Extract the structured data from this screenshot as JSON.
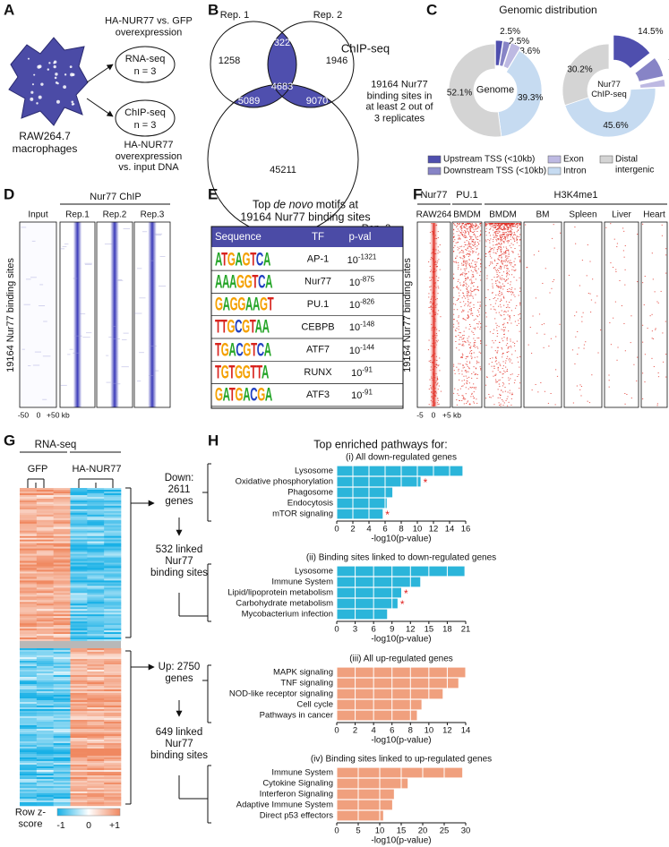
{
  "panels": {
    "letters": [
      "A",
      "B",
      "C",
      "D",
      "E",
      "F",
      "G",
      "H"
    ],
    "A": {
      "comparison": "HA-NUR77 vs. GFP overexpression",
      "rna": {
        "title": "RNA-seq",
        "n": "n = 3"
      },
      "chip": {
        "title": "ChIP-seq",
        "n": "n = 3"
      },
      "chip_comparison": "HA-NUR77 overexpression vs. input DNA",
      "cell": "RAW264.7 macrophages"
    },
    "B": {
      "sets": [
        "Rep. 1",
        "Rep. 2",
        "Rep. 3"
      ],
      "counts": {
        "1": 1258,
        "1+2": 322,
        "2": 1946,
        "1+2+3": 4683,
        "1+3": 5089,
        "2+3": 9070,
        "3": 45211
      },
      "label": "ChIP-seq",
      "note": "19164 Nur77 binding sites in at least 2 out of 3 replicates"
    },
    "D": {
      "title": "Nur77 ChIP",
      "tracks": [
        "Input",
        "Rep.1",
        "Rep.2",
        "Rep.3"
      ],
      "ylabel": "19164 Nur77 binding sites",
      "xticks": [
        "-50",
        "0",
        "+50 kb"
      ]
    },
    "E": {
      "title": {
        "start": "Top",
        "em": "de novo",
        "end": "motifs at",
        "line2": "19164 Nur77 binding sites"
      },
      "columns": [
        "Sequence",
        "TF",
        "p-val"
      ],
      "rows": [
        {
          "logo": "ATGAGTCA",
          "tf": "AP-1",
          "p": {
            "base": "10",
            "exp": "-1321"
          }
        },
        {
          "logo": "AAAGGTCA",
          "tf": "Nur77",
          "p": {
            "base": "10",
            "exp": "-875"
          }
        },
        {
          "logo": "GAGGAAGT",
          "tf": "PU.1",
          "p": {
            "base": "10",
            "exp": "-826"
          }
        },
        {
          "logo": "TTGCGTAA",
          "tf": "CEBPB",
          "p": {
            "base": "10",
            "exp": "-148"
          }
        },
        {
          "logo": "TGACGTCA",
          "tf": "ATF7",
          "p": {
            "base": "10",
            "exp": "-144"
          }
        },
        {
          "logo": "TGTGGTTA",
          "tf": "RUNX",
          "p": {
            "base": "10",
            "exp": "-91"
          }
        },
        {
          "logo": "GATGACGA",
          "tf": "ATF3",
          "p": {
            "base": "10",
            "exp": "-91"
          }
        }
      ]
    },
    "F": {
      "groups": [
        {
          "name": "Nur77",
          "tracks": [
            "RAW264"
          ]
        },
        {
          "name": "PU.1",
          "tracks": [
            "BMDM"
          ]
        },
        {
          "name": "H3K4me1",
          "tracks": [
            "BMDM",
            "BM",
            "Spleen",
            "Liver",
            "Heart"
          ]
        }
      ],
      "ylabel": "19164 Nur77 binding sites",
      "xticks": [
        "-5",
        "0",
        "+5 kb"
      ]
    },
    "G": {
      "title": "RNA-seq",
      "groups": [
        "GFP",
        "HA-NUR77"
      ],
      "legend_title": "Row z-score",
      "legend_ticks": [
        "-1",
        "0",
        "+1"
      ],
      "down": {
        "genes": "Down: 2611 genes",
        "linked": "532 linked Nur77 binding sites"
      },
      "up": {
        "genes": "Up: 2750 genes",
        "linked": "649 linked Nur77 binding sites"
      }
    },
    "H": {
      "title": "Top enriched pathways for:"
    }
  },
  "chart_data": [
    {
      "type": "pie",
      "title": "Genomic distribution",
      "categories": [
        "Upstream TSS (<10kb)",
        "Downstream TSS (<10kb)",
        "Exon",
        "Intron",
        "Distal intergenic"
      ],
      "colors": [
        "#4f4fae",
        "#8784c6",
        "#bdb9e2",
        "#c6dbf1",
        "#d4d4d4"
      ],
      "exploded": [
        true,
        true,
        true,
        false,
        false
      ],
      "series": [
        {
          "name": "Genome",
          "values": [
            2.5,
            2.5,
            3.6,
            39.3,
            52.1
          ],
          "value_labels": [
            "2.5%",
            "2.5%",
            "3.6%",
            "39.3%",
            "52.1%"
          ]
        },
        {
          "name": "Nur77 ChIP-seq",
          "values": [
            14.5,
            7.1,
            2.6,
            45.6,
            30.2
          ],
          "value_labels": [
            "14.5%",
            "7.1%",
            "2.6%",
            "45.6%",
            "30.2%"
          ]
        }
      ]
    },
    {
      "type": "bar",
      "title": "(i) All down-regulated genes",
      "categories": [
        "Lysosome",
        "Oxidative phosphorylation",
        "Phagosome",
        "Endocytosis",
        "mTOR signaling"
      ],
      "values": [
        15.6,
        10.4,
        6.9,
        6.2,
        5.7
      ],
      "starred": [
        false,
        true,
        false,
        false,
        true
      ],
      "star_label": "*",
      "color": "#2bb5da",
      "xlim": [
        0,
        16
      ],
      "xticks": [
        0,
        2,
        4,
        6,
        8,
        10,
        12,
        14,
        16
      ],
      "xlabel": "-log10(p-value)",
      "grid": true
    },
    {
      "type": "bar",
      "title": "(ii) Binding sites linked to down-regulated genes",
      "categories": [
        "Lysosome",
        "Immune System",
        "Lipid/lipoprotein metabolism",
        "Carbohydrate metabolism",
        "Mycobacterium infection"
      ],
      "values": [
        20.8,
        13.6,
        10.5,
        9.9,
        8.2
      ],
      "starred": [
        false,
        false,
        true,
        true,
        false
      ],
      "star_label": "*",
      "color": "#2bb5da",
      "xlim": [
        0,
        21
      ],
      "xticks": [
        0,
        3,
        6,
        9,
        12,
        15,
        18,
        21
      ],
      "xlabel": "-log10(p-value)",
      "grid": true
    },
    {
      "type": "bar",
      "title": "(iii) All up-regulated genes",
      "categories": [
        "MAPK signaling",
        "TNF signaling",
        "NOD-like receptor signaling",
        "Cell cycle",
        "Pathways in cancer"
      ],
      "values": [
        14,
        13.2,
        11.5,
        9.2,
        8.7
      ],
      "color": "#f0a07e",
      "xlim": [
        0,
        14
      ],
      "xticks": [
        0,
        2,
        4,
        6,
        8,
        10,
        12,
        14
      ],
      "xlabel": "-log10(p-value)",
      "grid": true
    },
    {
      "type": "bar",
      "title": "(iv) Binding sites linked to up-regulated genes",
      "categories": [
        "Immune System",
        "Cytokine Signaling",
        "Interferon Signaling",
        "Adaptive Immune System",
        "Direct p53 effectors"
      ],
      "values": [
        29.2,
        16.5,
        13.3,
        12.9,
        10.8
      ],
      "color": "#f0a07e",
      "xlim": [
        0,
        30
      ],
      "xticks": [
        0,
        5,
        10,
        15,
        20,
        25,
        30
      ],
      "xlabel": "-log10(p-value)",
      "grid": true
    }
  ]
}
